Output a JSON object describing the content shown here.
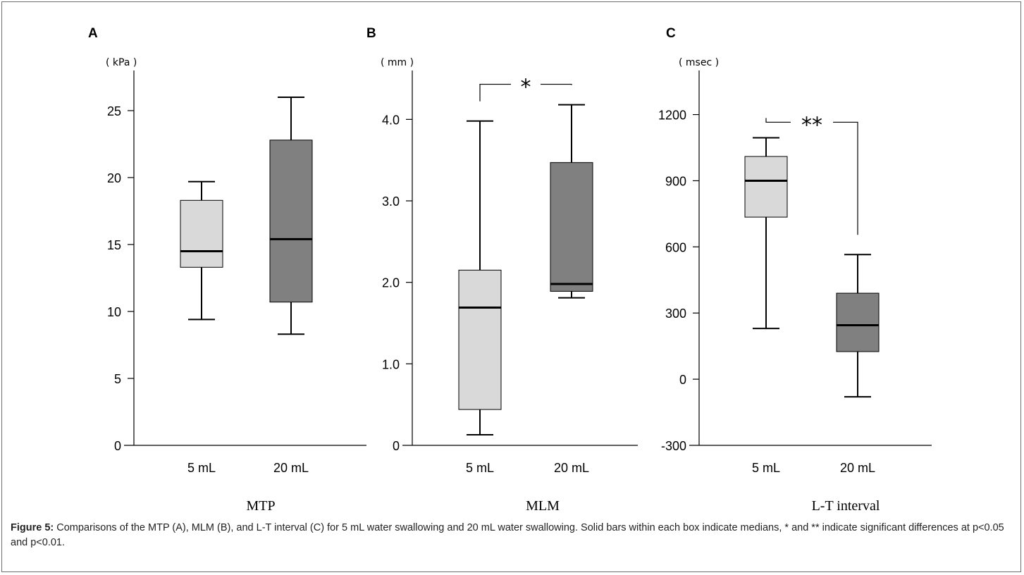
{
  "figure": {
    "caption_label": "Figure 5:",
    "caption_text": " Comparisons of the MTP (A), MLM (B), and L-T interval (C) for 5 mL water  swallowing and 20 mL water swallowing. Solid bars within each box indicate medians, * and ** indicate significant differences at p<0.05 and p<0.01."
  },
  "colors": {
    "light_box": "#d9d9d9",
    "dark_box": "#808080",
    "line": "#000000"
  },
  "chart_data": [
    {
      "type": "box",
      "panel": "A",
      "unit": "( kPa )",
      "xlabel": "MTP",
      "categories": [
        "5 mL",
        "20 mL"
      ],
      "ylim": [
        0,
        28
      ],
      "yticks": [
        0,
        5,
        10,
        15,
        20,
        25
      ],
      "ytick_labels": [
        "0",
        "5",
        "10",
        "15",
        "20",
        "25"
      ],
      "boxes": [
        {
          "min": 9.4,
          "q1": 13.3,
          "median": 14.5,
          "q3": 18.3,
          "max": 19.7
        },
        {
          "min": 8.3,
          "q1": 10.7,
          "median": 15.4,
          "q3": 22.8,
          "max": 26.0
        }
      ],
      "significance": null
    },
    {
      "type": "box",
      "panel": "B",
      "unit": "( mm )",
      "xlabel": "MLM",
      "categories": [
        "5 mL",
        "20 mL"
      ],
      "ylim": [
        0,
        4.6
      ],
      "yticks": [
        0,
        1,
        2,
        3,
        4
      ],
      "ytick_labels": [
        "0",
        "1.0",
        "2.0",
        "3.0",
        "4.0"
      ],
      "boxes": [
        {
          "min": 0.13,
          "q1": 0.44,
          "median": 1.69,
          "q3": 2.15,
          "max": 3.98
        },
        {
          "min": 1.81,
          "q1": 1.89,
          "median": 1.98,
          "q3": 3.47,
          "max": 4.18
        }
      ],
      "significance": "*"
    },
    {
      "type": "box",
      "panel": "C",
      "unit": "( msec )",
      "xlabel": "L-T interval",
      "categories": [
        "5 mL",
        "20 mL"
      ],
      "ylim": [
        -300,
        1400
      ],
      "yticks": [
        -300,
        0,
        300,
        600,
        900,
        1200
      ],
      "ytick_labels": [
        "-300",
        "0",
        "300",
        "600",
        "900",
        "1200"
      ],
      "boxes": [
        {
          "min": 230,
          "q1": 735,
          "median": 900,
          "q3": 1010,
          "max": 1095
        },
        {
          "min": -80,
          "q1": 125,
          "median": 245,
          "q3": 390,
          "max": 565
        }
      ],
      "significance": "**"
    }
  ]
}
